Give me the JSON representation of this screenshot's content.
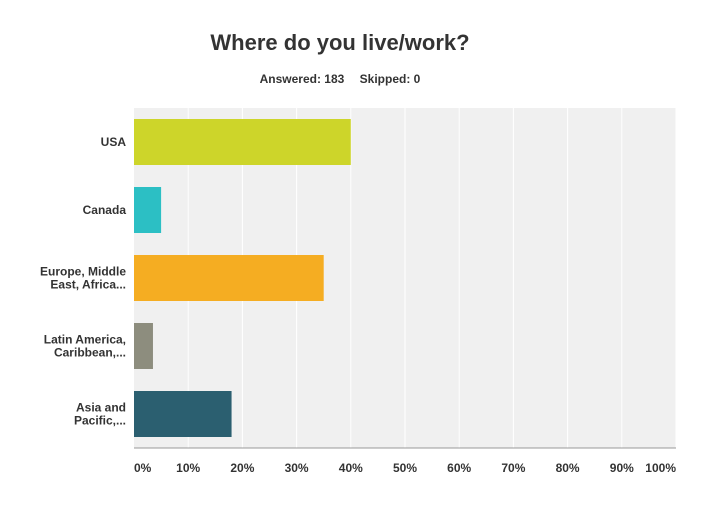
{
  "chart_data": {
    "type": "bar",
    "orientation": "horizontal",
    "title": "Where do you live/work?",
    "answered_label": "Answered: 183",
    "skipped_label": "Skipped: 0",
    "categories": [
      [
        "USA"
      ],
      [
        "Canada"
      ],
      [
        "Europe, Middle",
        "East, Africa..."
      ],
      [
        "Latin America,",
        "Caribbean,..."
      ],
      [
        "Asia and",
        "Pacific,..."
      ]
    ],
    "values": [
      40,
      5,
      35,
      3.5,
      18
    ],
    "colors": [
      "#cdd52a",
      "#2cbfc4",
      "#f5ad22",
      "#8d8d7e",
      "#2b5f70"
    ],
    "xlim": [
      0,
      100
    ],
    "x_ticks": [
      "0%",
      "10%",
      "20%",
      "30%",
      "40%",
      "50%",
      "60%",
      "70%",
      "80%",
      "90%",
      "100%"
    ],
    "x_tick_values": [
      0,
      10,
      20,
      30,
      40,
      50,
      60,
      70,
      80,
      90,
      100
    ],
    "grid": true,
    "plot_background": "#f0f0f0",
    "grid_color": "#ffffff"
  }
}
